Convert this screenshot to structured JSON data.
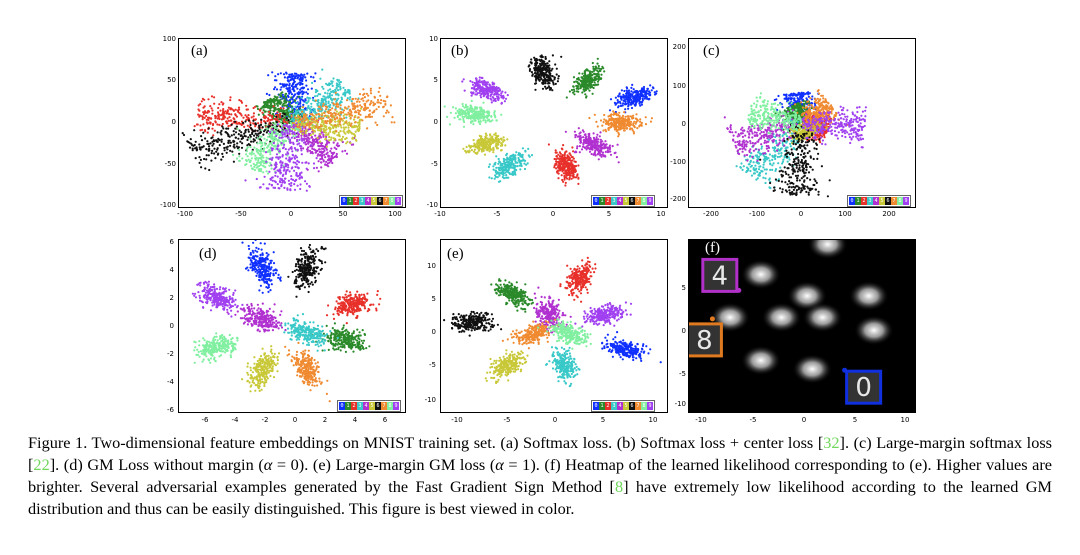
{
  "panels": [
    {
      "id": "a",
      "label": "(a)",
      "yticks": [
        "100",
        "50",
        "0",
        "-50",
        "-100"
      ],
      "xticks": [
        "-100",
        "-50",
        "0",
        "50",
        "100"
      ],
      "legend": true
    },
    {
      "id": "b",
      "label": "(b)",
      "yticks": [
        "10",
        "5",
        "0",
        "-5",
        "-10"
      ],
      "xticks": [
        "-10",
        "-5",
        "0",
        "5",
        "10"
      ],
      "legend": true
    },
    {
      "id": "c",
      "label": "(c)",
      "yticks": [
        "200",
        "100",
        "0",
        "-100",
        "-200"
      ],
      "xticks": [
        "-200",
        "-100",
        "0",
        "100",
        "200"
      ],
      "legend": true
    },
    {
      "id": "d",
      "label": "(d)",
      "yticks": [
        "6",
        "4",
        "2",
        "0",
        "-2",
        "-4",
        "-6"
      ],
      "xticks": [
        "-6",
        "-4",
        "-2",
        "0",
        "2",
        "4",
        "6"
      ],
      "legend": true
    },
    {
      "id": "e",
      "label": "(e)",
      "yticks": [
        "10",
        "5",
        "0",
        "-5",
        "-10"
      ],
      "xticks": [
        "-10",
        "-5",
        "0",
        "5",
        "10"
      ],
      "legend": true
    },
    {
      "id": "f",
      "label": "(f)",
      "yticks": [
        "5",
        "0",
        "-5",
        "-10"
      ],
      "xticks": [
        "-10",
        "-5",
        "0",
        "5",
        "10"
      ],
      "legend": false
    }
  ],
  "legend_digits": [
    "0",
    "1",
    "2",
    "3",
    "4",
    "5",
    "6",
    "7",
    "8",
    "9"
  ],
  "legend_colors": [
    "#1030ff",
    "#2a8a2a",
    "#e8302a",
    "#38c8c8",
    "#b030d0",
    "#c8c838",
    "#101010",
    "#f08a30",
    "#80f0a0",
    "#a040f0"
  ],
  "caption": {
    "p1": "Figure 1. Two-dimensional feature embeddings on MNIST training set. (a) Softmax loss. (b) Softmax loss + center loss [",
    "ref1": "32",
    "p2": "]. (c) Large-margin softmax loss [",
    "ref2": "22",
    "p3": "]. (d) GM Loss without margin (",
    "alpha": "α",
    "p4": " = 0). (e) Large-margin GM loss (",
    "p5": " = 1). (f) Heatmap of the learned likelihood corresponding to (e).  Higher values are brighter.  Several adversarial examples generated by the Fast Gradient Sign Method [",
    "ref3": "8",
    "p6": "] have extremely low likelihood according to the learned GM distribution and thus can be easily distinguished. This figure is best viewed in color."
  },
  "chart_data": [
    {
      "type": "scatter",
      "title": "(a) Softmax loss",
      "xlim": [
        -100,
        100
      ],
      "ylim": [
        -100,
        100
      ],
      "series": [
        {
          "name": "0",
          "color": "#1030ff",
          "angle_deg": 88,
          "length": 60
        },
        {
          "name": "1",
          "color": "#2a8a2a",
          "angle_deg": 125,
          "length": 35
        },
        {
          "name": "2",
          "color": "#e8302a",
          "angle_deg": 172,
          "length": 85
        },
        {
          "name": "3",
          "color": "#38c8c8",
          "angle_deg": 40,
          "length": 65
        },
        {
          "name": "4",
          "color": "#b030d0",
          "angle_deg": -50,
          "length": 60
        },
        {
          "name": "5",
          "color": "#c8c838",
          "angle_deg": -8,
          "length": 60
        },
        {
          "name": "6",
          "color": "#101010",
          "angle_deg": -158,
          "length": 95
        },
        {
          "name": "7",
          "color": "#f08a30",
          "angle_deg": 15,
          "length": 90
        },
        {
          "name": "8",
          "color": "#80f0a0",
          "angle_deg": -125,
          "length": 65
        },
        {
          "name": "9",
          "color": "#a040f0",
          "angle_deg": -95,
          "length": 80
        }
      ]
    },
    {
      "type": "scatter",
      "title": "(b) Softmax loss + center loss",
      "xlim": [
        -10,
        10
      ],
      "ylim": [
        -10,
        10
      ],
      "series": [
        {
          "name": "0",
          "color": "#1030ff",
          "x": 7,
          "y": 3
        },
        {
          "name": "1",
          "color": "#2a8a2a",
          "x": 3,
          "y": 5
        },
        {
          "name": "2",
          "color": "#e8302a",
          "x": 1,
          "y": -5
        },
        {
          "name": "3",
          "color": "#38c8c8",
          "x": -4,
          "y": -5
        },
        {
          "name": "4",
          "color": "#b030d0",
          "x": 3.5,
          "y": -2.5
        },
        {
          "name": "5",
          "color": "#c8c838",
          "x": -6,
          "y": -2.5
        },
        {
          "name": "6",
          "color": "#101010",
          "x": -1,
          "y": 6
        },
        {
          "name": "7",
          "color": "#f08a30",
          "x": 6,
          "y": 0
        },
        {
          "name": "8",
          "color": "#80f0a0",
          "x": -7,
          "y": 1
        },
        {
          "name": "9",
          "color": "#a040f0",
          "x": -6,
          "y": 4
        }
      ]
    },
    {
      "type": "scatter",
      "title": "(c) Large-margin softmax loss",
      "xlim": [
        -250,
        250
      ],
      "ylim": [
        -220,
        220
      ],
      "series": [
        {
          "name": "0",
          "color": "#1030ff",
          "angle_deg": 100,
          "length": 80
        },
        {
          "name": "1",
          "color": "#2a8a2a",
          "angle_deg": 118,
          "length": 50
        },
        {
          "name": "2",
          "color": "#e8302a",
          "angle_deg": -18,
          "length": 60
        },
        {
          "name": "3",
          "color": "#38c8c8",
          "angle_deg": -130,
          "length": 180
        },
        {
          "name": "4",
          "color": "#b030d0",
          "angle_deg": -160,
          "length": 160
        },
        {
          "name": "5",
          "color": "#c8c838",
          "angle_deg": -60,
          "length": 40
        },
        {
          "name": "6",
          "color": "#101010",
          "angle_deg": -92,
          "length": 190
        },
        {
          "name": "7",
          "color": "#f08a30",
          "angle_deg": 35,
          "length": 80
        },
        {
          "name": "8",
          "color": "#80f0a0",
          "angle_deg": 165,
          "length": 120
        },
        {
          "name": "9",
          "color": "#a040f0",
          "angle_deg": -5,
          "length": 140
        }
      ]
    },
    {
      "type": "scatter",
      "title": "(d) GM Loss without margin (alpha = 0)",
      "xlim": [
        -7,
        8
      ],
      "ylim": [
        -6,
        6
      ],
      "series": [
        {
          "name": "0",
          "color": "#1030ff",
          "x": -1.5,
          "y": 4
        },
        {
          "name": "1",
          "color": "#2a8a2a",
          "x": 4,
          "y": -1
        },
        {
          "name": "2",
          "color": "#e8302a",
          "x": 4.5,
          "y": 1.5
        },
        {
          "name": "3",
          "color": "#38c8c8",
          "x": 1.5,
          "y": -0.5
        },
        {
          "name": "4",
          "color": "#b030d0",
          "x": -1.5,
          "y": 0.5
        },
        {
          "name": "5",
          "color": "#c8c838",
          "x": -1.5,
          "y": -3
        },
        {
          "name": "6",
          "color": "#101010",
          "x": 1.5,
          "y": 4
        },
        {
          "name": "7",
          "color": "#f08a30",
          "x": 1.5,
          "y": -3
        },
        {
          "name": "8",
          "color": "#80f0a0",
          "x": -4.5,
          "y": -1.5
        },
        {
          "name": "9",
          "color": "#a040f0",
          "x": -4.5,
          "y": 2
        }
      ]
    },
    {
      "type": "scatter",
      "title": "(e) Large-margin GM loss (alpha = 1)",
      "xlim": [
        -11,
        11
      ],
      "ylim": [
        -11,
        11
      ],
      "series": [
        {
          "name": "0",
          "color": "#1030ff",
          "x": 7,
          "y": -3
        },
        {
          "name": "1",
          "color": "#2a8a2a",
          "x": -4,
          "y": 4
        },
        {
          "name": "2",
          "color": "#e8302a",
          "x": 2.5,
          "y": 6
        },
        {
          "name": "3",
          "color": "#38c8c8",
          "x": 1,
          "y": -5
        },
        {
          "name": "4",
          "color": "#b030d0",
          "x": -0.5,
          "y": 1.5
        },
        {
          "name": "5",
          "color": "#c8c838",
          "x": -4.5,
          "y": -5
        },
        {
          "name": "6",
          "color": "#101010",
          "x": -8,
          "y": 0.5
        },
        {
          "name": "7",
          "color": "#f08a30",
          "x": -2,
          "y": -1
        },
        {
          "name": "8",
          "color": "#80f0a0",
          "x": 1.5,
          "y": -1
        },
        {
          "name": "9",
          "color": "#a040f0",
          "x": 5,
          "y": 1.5
        }
      ]
    },
    {
      "type": "heatmap",
      "title": "(f) Heatmap of the learned likelihood",
      "xlim": [
        -11,
        11
      ],
      "ylim": [
        -12,
        8
      ],
      "centers": [
        [
          2.5,
          7.5
        ],
        [
          -4,
          4
        ],
        [
          6.5,
          1.5
        ],
        [
          0.5,
          1.5
        ],
        [
          -7,
          -1
        ],
        [
          -2,
          -1
        ],
        [
          2,
          -1
        ],
        [
          7,
          -2.5
        ],
        [
          -4,
          -6
        ],
        [
          1,
          -7
        ]
      ],
      "adversarial_examples": [
        {
          "digit_shown": "4",
          "color": "#b030c8",
          "x": -8,
          "y": 4
        },
        {
          "digit_shown": "8",
          "color": "#e07a20",
          "x": -9.5,
          "y": -3.5
        },
        {
          "digit_shown": "0",
          "color": "#1030e0",
          "x": 6,
          "y": -9
        }
      ]
    }
  ]
}
